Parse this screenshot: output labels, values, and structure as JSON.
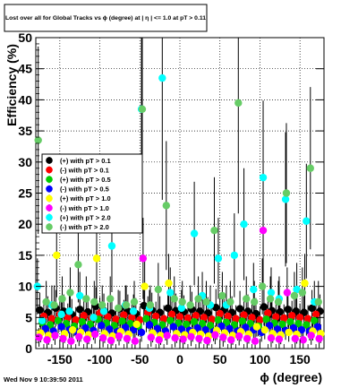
{
  "chart_data": {
    "type": "scatter",
    "title": "Lost over all for Global Tracks vs ϕ (degree) at | η | <= 1.0 at pT > 0.11",
    "xlabel": "ϕ (degree)",
    "ylabel": "Efficiency (%)",
    "xlim": [
      -180,
      180
    ],
    "ylim": [
      0,
      50
    ],
    "xticks": [
      -150,
      -100,
      -50,
      0,
      50,
      100,
      150
    ],
    "yticks": [
      0,
      5,
      10,
      15,
      20,
      25,
      30,
      35,
      40,
      45,
      50
    ],
    "grid": true,
    "legend_position": "middle-left",
    "footer": "Wed Nov  9 10:39:50 2011",
    "series": [
      {
        "name": "(+) with pT > 0.1",
        "color": "#000000",
        "x": [
          -175,
          -165,
          -155,
          -145,
          -135,
          -125,
          -115,
          -105,
          -95,
          -85,
          -75,
          -65,
          -55,
          -45,
          -35,
          -25,
          -15,
          -5,
          5,
          15,
          25,
          35,
          45,
          55,
          65,
          75,
          85,
          95,
          105,
          115,
          125,
          135,
          145,
          155,
          165,
          175
        ],
        "y": [
          6.2,
          5.8,
          6.5,
          6.0,
          5.5,
          6.3,
          5.9,
          6.8,
          6.1,
          5.7,
          6.4,
          6.0,
          5.6,
          6.9,
          6.2,
          5.8,
          6.5,
          6.1,
          5.9,
          6.3,
          6.0,
          5.7,
          6.6,
          6.2,
          5.8,
          6.4,
          6.0,
          5.6,
          6.7,
          6.1,
          5.9,
          6.3,
          6.0,
          5.8,
          6.5,
          6.0
        ]
      },
      {
        "name": "(-) with pT > 0.1",
        "color": "#ff0000",
        "x": [
          -170,
          -160,
          -150,
          -140,
          -130,
          -120,
          -110,
          -100,
          -90,
          -80,
          -70,
          -60,
          -50,
          -40,
          -30,
          -20,
          -10,
          0,
          10,
          20,
          30,
          40,
          50,
          60,
          70,
          80,
          90,
          100,
          110,
          120,
          130,
          140,
          150,
          160,
          170
        ],
        "y": [
          5.2,
          4.8,
          5.5,
          5.0,
          4.6,
          5.3,
          4.9,
          5.7,
          5.1,
          4.7,
          5.4,
          5.0,
          4.6,
          5.8,
          5.2,
          4.8,
          5.5,
          5.1,
          4.9,
          5.3,
          5.0,
          4.7,
          5.6,
          5.2,
          4.8,
          5.4,
          5.0,
          4.6,
          5.7,
          5.1,
          4.9,
          5.3,
          5.0,
          4.8,
          5.5
        ]
      },
      {
        "name": "(+) with pT > 0.5",
        "color": "#00cc00",
        "x": [
          -172,
          -162,
          -152,
          -142,
          -132,
          -122,
          -112,
          -102,
          -92,
          -82,
          -72,
          -62,
          -52,
          -42,
          -32,
          -22,
          -12,
          -2,
          8,
          18,
          28,
          38,
          48,
          58,
          68,
          78,
          88,
          98,
          108,
          118,
          128,
          138,
          148,
          158,
          168
        ],
        "y": [
          4.2,
          3.8,
          4.5,
          4.0,
          3.6,
          4.3,
          3.9,
          4.7,
          4.1,
          3.7,
          4.4,
          4.0,
          3.6,
          4.8,
          4.2,
          3.8,
          4.5,
          4.1,
          3.9,
          4.3,
          4.0,
          3.7,
          4.6,
          4.2,
          3.8,
          4.4,
          4.0,
          3.6,
          4.7,
          4.1,
          3.9,
          4.3,
          4.0,
          3.8,
          4.5
        ]
      },
      {
        "name": "(-) with pT > 0.5",
        "color": "#0000ff",
        "x": [
          -168,
          -158,
          -148,
          -138,
          -128,
          -118,
          -108,
          -98,
          -88,
          -78,
          -68,
          -58,
          -48,
          -38,
          -28,
          -18,
          -8,
          2,
          12,
          22,
          32,
          42,
          52,
          62,
          72,
          82,
          92,
          102,
          112,
          122,
          132,
          142,
          152,
          162,
          172
        ],
        "y": [
          3.2,
          2.8,
          3.5,
          3.0,
          2.6,
          3.3,
          2.9,
          3.7,
          3.1,
          2.7,
          3.4,
          3.0,
          2.6,
          3.8,
          3.2,
          2.8,
          3.5,
          3.1,
          2.9,
          3.3,
          3.0,
          2.7,
          3.6,
          3.2,
          2.8,
          3.4,
          3.0,
          2.6,
          3.7,
          3.1,
          2.9,
          3.3,
          3.0,
          2.8,
          3.5
        ]
      },
      {
        "name": "(+) with pT > 1.0",
        "color": "#ffff00",
        "x": [
          -174,
          -164,
          -154,
          -144,
          -134,
          -124,
          -114,
          -104,
          -94,
          -84,
          -74,
          -64,
          -54,
          -44,
          -34,
          -24,
          -14,
          -4,
          6,
          16,
          26,
          36,
          46,
          56,
          66,
          76,
          86,
          96,
          106,
          116,
          126,
          136,
          146,
          156,
          166,
          176
        ],
        "y": [
          2.5,
          2.1,
          15.0,
          2.4,
          3.0,
          2.6,
          2.2,
          14.5,
          2.4,
          2.0,
          2.7,
          2.3,
          3.9,
          10.0,
          2.5,
          2.1,
          10.5,
          2.4,
          2.2,
          2.6,
          2.3,
          2.0,
          2.9,
          2.5,
          2.1,
          2.7,
          2.3,
          3.5,
          3.0,
          2.4,
          2.2,
          2.6,
          2.3,
          10.5,
          2.8,
          2.4
        ]
      },
      {
        "name": "(-) with pT > 1.0",
        "color": "#ff00ff",
        "x": [
          -176,
          -166,
          -156,
          -146,
          -136,
          -126,
          -116,
          -106,
          -96,
          -86,
          -76,
          -66,
          -56,
          -46,
          -36,
          -26,
          -16,
          -6,
          4,
          14,
          24,
          34,
          44,
          54,
          64,
          74,
          84,
          94,
          104,
          114,
          124,
          134,
          144,
          154,
          164,
          174
        ],
        "y": [
          1.8,
          1.4,
          2.1,
          1.6,
          1.2,
          1.9,
          1.5,
          2.3,
          1.7,
          1.3,
          2.0,
          1.6,
          1.2,
          14.5,
          1.8,
          1.4,
          2.1,
          1.7,
          1.5,
          1.9,
          1.6,
          1.3,
          2.2,
          1.8,
          1.4,
          2.0,
          1.6,
          1.2,
          19.0,
          1.7,
          1.5,
          9.0,
          1.6,
          1.4,
          2.1,
          1.6
        ]
      },
      {
        "name": "(+) with pT > 2.0",
        "color": "#00ffff",
        "x": [
          -178,
          -172,
          -160,
          -148,
          -138,
          -125,
          -108,
          -95,
          -85,
          -68,
          -58,
          -48,
          -38,
          -22,
          -12,
          2,
          18,
          28,
          38,
          48,
          58,
          68,
          80,
          92,
          104,
          114,
          124,
          132,
          146,
          158,
          168
        ],
        "y": [
          10.0,
          4.5,
          7.0,
          5.5,
          6.0,
          8.5,
          5.0,
          6.0,
          16.5,
          7.0,
          6.0,
          38.5,
          6.5,
          43.5,
          9.0,
          6.5,
          18.5,
          8.5,
          7.0,
          14.5,
          7.0,
          15.0,
          20.0,
          9.5,
          27.5,
          9.0,
          8.0,
          24.0,
          9.5,
          20.5,
          7.5
        ]
      },
      {
        "name": "(-) with pT > 2.0",
        "color": "#66cc66",
        "x": [
          -177,
          -167,
          -157,
          -147,
          -137,
          -127,
          -117,
          -107,
          -97,
          -87,
          -77,
          -67,
          -57,
          -47,
          -37,
          -27,
          -17,
          -7,
          3,
          13,
          23,
          33,
          43,
          53,
          63,
          73,
          83,
          93,
          103,
          113,
          123,
          133,
          143,
          153,
          163,
          173
        ],
        "y": [
          33.5,
          7.5,
          7.0,
          8.0,
          9.0,
          13.5,
          8.0,
          7.5,
          7.0,
          8.0,
          6.5,
          7.0,
          7.5,
          38.5,
          7.0,
          9.5,
          23.0,
          8.0,
          7.5,
          7.0,
          8.0,
          7.5,
          19.0,
          8.5,
          7.5,
          39.5,
          8.0,
          7.5,
          10.0,
          8.0,
          7.5,
          25.0,
          8.5,
          9.0,
          29.0,
          7.5
        ]
      }
    ]
  }
}
